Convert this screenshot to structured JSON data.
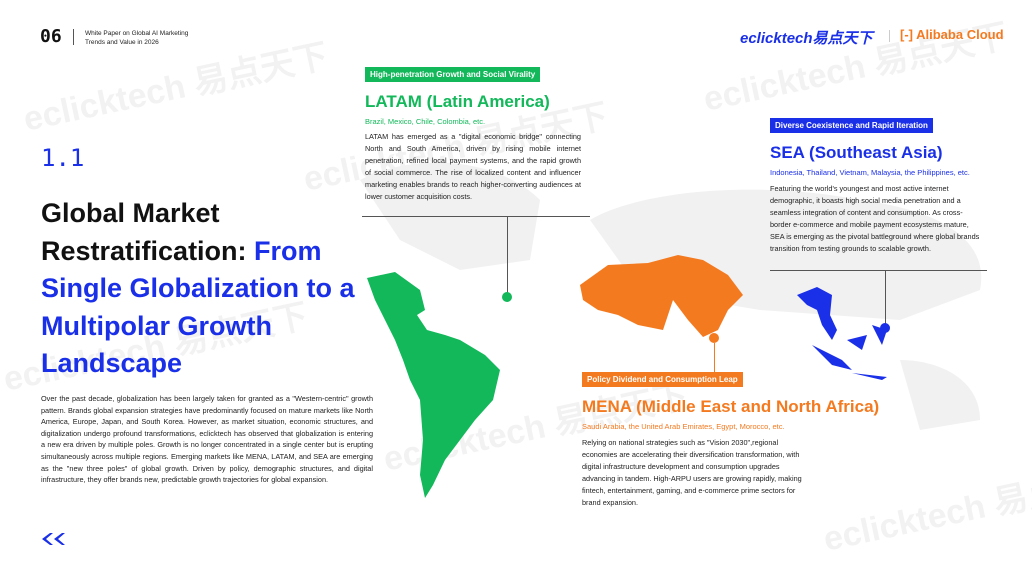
{
  "header": {
    "page_number": "06",
    "doc_title_line1": "White Paper on Global AI Marketing",
    "doc_title_line2": "Trends and Value in 2026",
    "logo_primary": "eclicktech易点天下",
    "logo_secondary": "Alibaba Cloud"
  },
  "section": {
    "number": "1.1",
    "title_black": "Global Market Restratification: ",
    "title_blue": "From Single Globalization to a Multipolar Growth Landscape",
    "intro": "Over the past decade, globalization has been largely taken for granted as a \"Western-centric\" growth pattern. Brands global expansion strategies have predominantly focused on mature markets like North America, Europe, Japan, and South Korea. However, as market situation, economic structures, and digitalization undergo profound transformations, eclicktech has observed that globalization is entering a new era driven by multiple poles. Growth is no longer concentrated in a single center but is erupting simultaneously across multiple regions. Emerging markets like MENA, LATAM, and SEA are emerging as the \"new three poles\" of global growth. Driven by policy, demographic structures, and digital infrastructure, they offer brands new, predictable growth trajectories for global expansion."
  },
  "regions": {
    "latam": {
      "tag": "High-penetration Growth and Social Virality",
      "title": "LATAM (Latin America)",
      "countries": "Brazil, Mexico, Chile, Colombia, etc.",
      "body": "LATAM has emerged as a \"digital economic bridge\" connecting North and South America, driven by rising mobile internet penetration, refined local payment systems, and the rapid growth of social commerce. The rise of localized content and influencer marketing enables brands to reach higher-converting audiences at lower customer acquisition costs.",
      "color": "#12b85a"
    },
    "sea": {
      "tag": "Diverse Coexistence and Rapid Iteration",
      "title": "SEA (Southeast Asia)",
      "countries": "Indonesia, Thailand, Vietnam, Malaysia, the Philippines, etc.",
      "body": "Featuring the world's youngest and most active internet demographic, it boasts high social media penetration and a seamless integration of content and consumption. As cross-border e-commerce and mobile payment ecosystems mature, SEA is emerging as the pivotal battleground where global brands transition from testing grounds to scalable growth.",
      "color": "#1a2fe8"
    },
    "mena": {
      "tag": "Policy Dividend and Consumption Leap",
      "title": "MENA (Middle East and North Africa)",
      "countries": "Saudi Arabia, the United Arab Emirates, Egypt, Morocco, etc.",
      "body": "Relying on national strategies such as \"Vision 2030\",regional economies are accelerating their diversification transformation, with digital infrastructure development and consumption upgrades advancing in tandem. High-ARPU users are growing rapidly, making fintech, entertainment, gaming, and e-commerce prime sectors for brand expansion.",
      "color": "#f47a20"
    }
  }
}
